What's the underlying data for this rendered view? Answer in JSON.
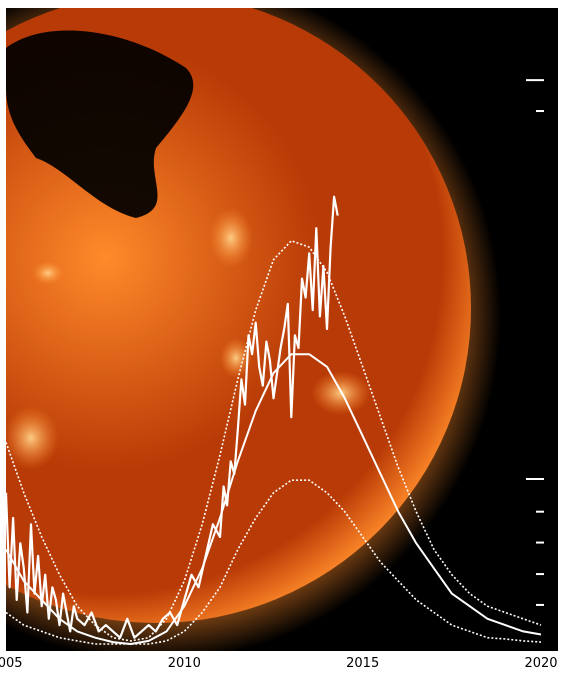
{
  "colors": {
    "background": "#000000",
    "sun_bright": "#ffd28a",
    "sun_mid": "#ff8a2a",
    "sun_dark": "#b83a06",
    "overlay": "#ffffff",
    "axis_text": "#000000"
  },
  "icons": {
    "sun": "sun-xray-image"
  },
  "chart_data": {
    "type": "line",
    "xlim": [
      2005,
      2020
    ],
    "ylim": [
      0,
      1
    ],
    "x_ticks": [
      {
        "value": 2005,
        "label": "2005"
      },
      {
        "value": 2010,
        "label": "2010"
      },
      {
        "value": 2015,
        "label": "2015"
      },
      {
        "value": 2020,
        "label": "2020"
      }
    ],
    "right_tick_marks": [
      0.895,
      0.846,
      0.262,
      0.21,
      0.161,
      0.111,
      0.062
    ],
    "series": [
      {
        "style": "jagged",
        "x": [
          2005.0,
          2005.1,
          2005.2,
          2005.3,
          2005.4,
          2005.5,
          2005.6,
          2005.7,
          2005.8,
          2005.9,
          2006.0,
          2006.1,
          2006.2,
          2006.3,
          2006.4,
          2006.5,
          2006.6,
          2006.7,
          2006.8,
          2006.9,
          2007.0,
          2007.2,
          2007.4,
          2007.6,
          2007.8,
          2008.0,
          2008.2,
          2008.4,
          2008.6,
          2008.8,
          2009.0,
          2009.2,
          2009.4,
          2009.6,
          2009.8,
          2010.0,
          2010.2,
          2010.4,
          2010.6,
          2010.8,
          2011.0,
          2011.1,
          2011.2,
          2011.3,
          2011.4,
          2011.5,
          2011.6,
          2011.7,
          2011.8,
          2011.9,
          2012.0,
          2012.1,
          2012.2,
          2012.3,
          2012.4,
          2012.5,
          2012.6,
          2012.7,
          2012.8,
          2012.9,
          2013.0,
          2013.1,
          2013.2,
          2013.3,
          2013.4,
          2013.5,
          2013.6,
          2013.7,
          2013.8,
          2013.9,
          2014.0,
          2014.1,
          2014.2,
          2014.3
        ],
        "y": [
          0.24,
          0.09,
          0.2,
          0.07,
          0.16,
          0.12,
          0.05,
          0.19,
          0.08,
          0.14,
          0.06,
          0.11,
          0.04,
          0.09,
          0.07,
          0.03,
          0.08,
          0.05,
          0.02,
          0.06,
          0.04,
          0.03,
          0.05,
          0.02,
          0.03,
          0.02,
          0.01,
          0.04,
          0.01,
          0.02,
          0.03,
          0.02,
          0.04,
          0.05,
          0.03,
          0.07,
          0.11,
          0.09,
          0.14,
          0.19,
          0.17,
          0.25,
          0.22,
          0.29,
          0.27,
          0.34,
          0.42,
          0.38,
          0.49,
          0.46,
          0.51,
          0.44,
          0.41,
          0.48,
          0.45,
          0.39,
          0.43,
          0.47,
          0.5,
          0.54,
          0.36,
          0.49,
          0.47,
          0.58,
          0.55,
          0.62,
          0.53,
          0.66,
          0.52,
          0.6,
          0.5,
          0.63,
          0.71,
          0.68
        ]
      },
      {
        "style": "dotted",
        "x": [
          2005.0,
          2005.5,
          2006.0,
          2006.5,
          2007.0,
          2007.5,
          2008.0,
          2008.5,
          2009.0,
          2009.5,
          2010.0,
          2010.5,
          2011.0,
          2011.5,
          2012.0,
          2012.5,
          2013.0,
          2013.5,
          2014.0,
          2014.5,
          2015.0,
          2015.5,
          2016.0,
          2016.5,
          2017.0,
          2017.5,
          2018.0,
          2018.5,
          2019.0,
          2019.5,
          2020.0
        ],
        "y": [
          0.32,
          0.24,
          0.17,
          0.11,
          0.06,
          0.03,
          0.01,
          0.005,
          0.01,
          0.04,
          0.1,
          0.19,
          0.3,
          0.42,
          0.53,
          0.61,
          0.64,
          0.63,
          0.59,
          0.52,
          0.44,
          0.36,
          0.28,
          0.21,
          0.15,
          0.11,
          0.08,
          0.06,
          0.05,
          0.04,
          0.03
        ]
      },
      {
        "style": "solid-smooth",
        "x": [
          2005.0,
          2005.5,
          2006.0,
          2006.5,
          2007.0,
          2007.5,
          2008.0,
          2008.5,
          2009.0,
          2009.5,
          2010.0,
          2010.5,
          2011.0,
          2011.5,
          2012.0,
          2012.5,
          2013.0,
          2013.5,
          2014.0,
          2014.5,
          2015.0,
          2015.5,
          2016.0,
          2016.5,
          2017.0,
          2017.5,
          2018.0,
          2018.5,
          2019.0,
          2019.5,
          2020.0
        ],
        "y": [
          0.15,
          0.1,
          0.07,
          0.04,
          0.02,
          0.01,
          0.003,
          0.0,
          0.005,
          0.02,
          0.06,
          0.12,
          0.2,
          0.29,
          0.37,
          0.43,
          0.46,
          0.46,
          0.44,
          0.39,
          0.33,
          0.27,
          0.21,
          0.16,
          0.12,
          0.08,
          0.06,
          0.04,
          0.03,
          0.02,
          0.015
        ]
      },
      {
        "style": "dotted",
        "x": [
          2005.0,
          2005.5,
          2006.0,
          2006.5,
          2007.0,
          2007.5,
          2008.0,
          2008.5,
          2009.0,
          2009.5,
          2010.0,
          2010.5,
          2011.0,
          2011.5,
          2012.0,
          2012.5,
          2013.0,
          2013.5,
          2014.0,
          2014.5,
          2015.0,
          2015.5,
          2016.0,
          2016.5,
          2017.0,
          2017.5,
          2018.0,
          2018.5,
          2019.0,
          2019.5,
          2020.0
        ],
        "y": [
          0.05,
          0.03,
          0.02,
          0.01,
          0.005,
          0.0,
          0.0,
          0.0,
          0.0,
          0.005,
          0.02,
          0.05,
          0.09,
          0.15,
          0.2,
          0.24,
          0.26,
          0.26,
          0.24,
          0.21,
          0.17,
          0.13,
          0.1,
          0.07,
          0.05,
          0.03,
          0.02,
          0.01,
          0.008,
          0.005,
          0.003
        ]
      }
    ]
  }
}
